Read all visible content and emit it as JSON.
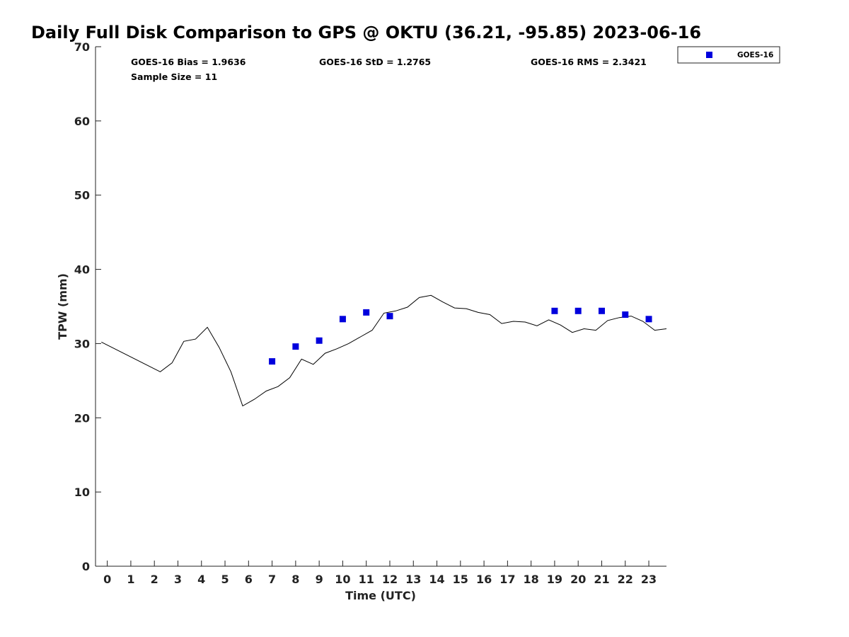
{
  "chart_data": {
    "type": "scatter",
    "title": "Daily Full Disk Comparison to GPS @ OKTU (36.21, -95.85) 2023-06-16",
    "xlabel": "Time (UTC)",
    "ylabel": "TPW (mm)",
    "xlim": [
      -0.5,
      23.75
    ],
    "ylim": [
      0,
      70
    ],
    "x_ticks": [
      "0",
      "1",
      "2",
      "3",
      "4",
      "5",
      "6",
      "7",
      "8",
      "9",
      "10",
      "11",
      "12",
      "13",
      "14",
      "15",
      "16",
      "17",
      "18",
      "19",
      "20",
      "21",
      "22",
      "23"
    ],
    "y_ticks": [
      "0",
      "10",
      "20",
      "30",
      "40",
      "50",
      "60",
      "70"
    ],
    "stats": {
      "bias": "GOES-16 Bias = 1.9636",
      "std": "GOES-16 StD = 1.2765",
      "rms": "GOES-16 RMS = 2.3421",
      "sample": "Sample Size = 11"
    },
    "legend": {
      "placement": "top-right",
      "label": "GOES-16"
    },
    "colors": {
      "goes": "#0000dd",
      "gps_line": "#000000"
    },
    "gps_line": {
      "x": [
        -0.25,
        2.25,
        2.75,
        3.25,
        3.75,
        4.25,
        4.75,
        5.25,
        5.75,
        6.25,
        6.75,
        7.25,
        7.75,
        8.25,
        8.75,
        9.25,
        9.75,
        10.25,
        10.75,
        11.25,
        11.75,
        12.25,
        12.75,
        13.25,
        13.75,
        14.25,
        14.75,
        15.25,
        15.75,
        16.25,
        16.75,
        17.25,
        17.75,
        18.25,
        18.75,
        19.25,
        19.75,
        20.25,
        20.75,
        21.25,
        21.75,
        22.25,
        22.75,
        23.25,
        23.75
      ],
      "y": [
        30.2,
        26.2,
        27.4,
        30.3,
        30.6,
        32.2,
        29.5,
        26.2,
        21.6,
        22.5,
        23.6,
        24.2,
        25.4,
        27.9,
        27.2,
        28.7,
        29.3,
        30.0,
        30.9,
        31.8,
        34.1,
        34.4,
        34.9,
        36.2,
        36.5,
        35.6,
        34.8,
        34.7,
        34.2,
        33.9,
        32.7,
        33.0,
        32.9,
        32.4,
        33.2,
        32.5,
        31.5,
        32.0,
        31.8,
        33.1,
        33.5,
        33.7,
        33.0,
        31.8,
        32.0
      ]
    },
    "series": [
      {
        "name": "GOES-16",
        "x": [
          7,
          8,
          9,
          10,
          11,
          12,
          19,
          20,
          21,
          22,
          23
        ],
        "y": [
          27.6,
          29.6,
          30.4,
          33.3,
          34.2,
          33.7,
          34.4,
          34.4,
          34.4,
          33.9,
          33.3
        ]
      }
    ]
  }
}
